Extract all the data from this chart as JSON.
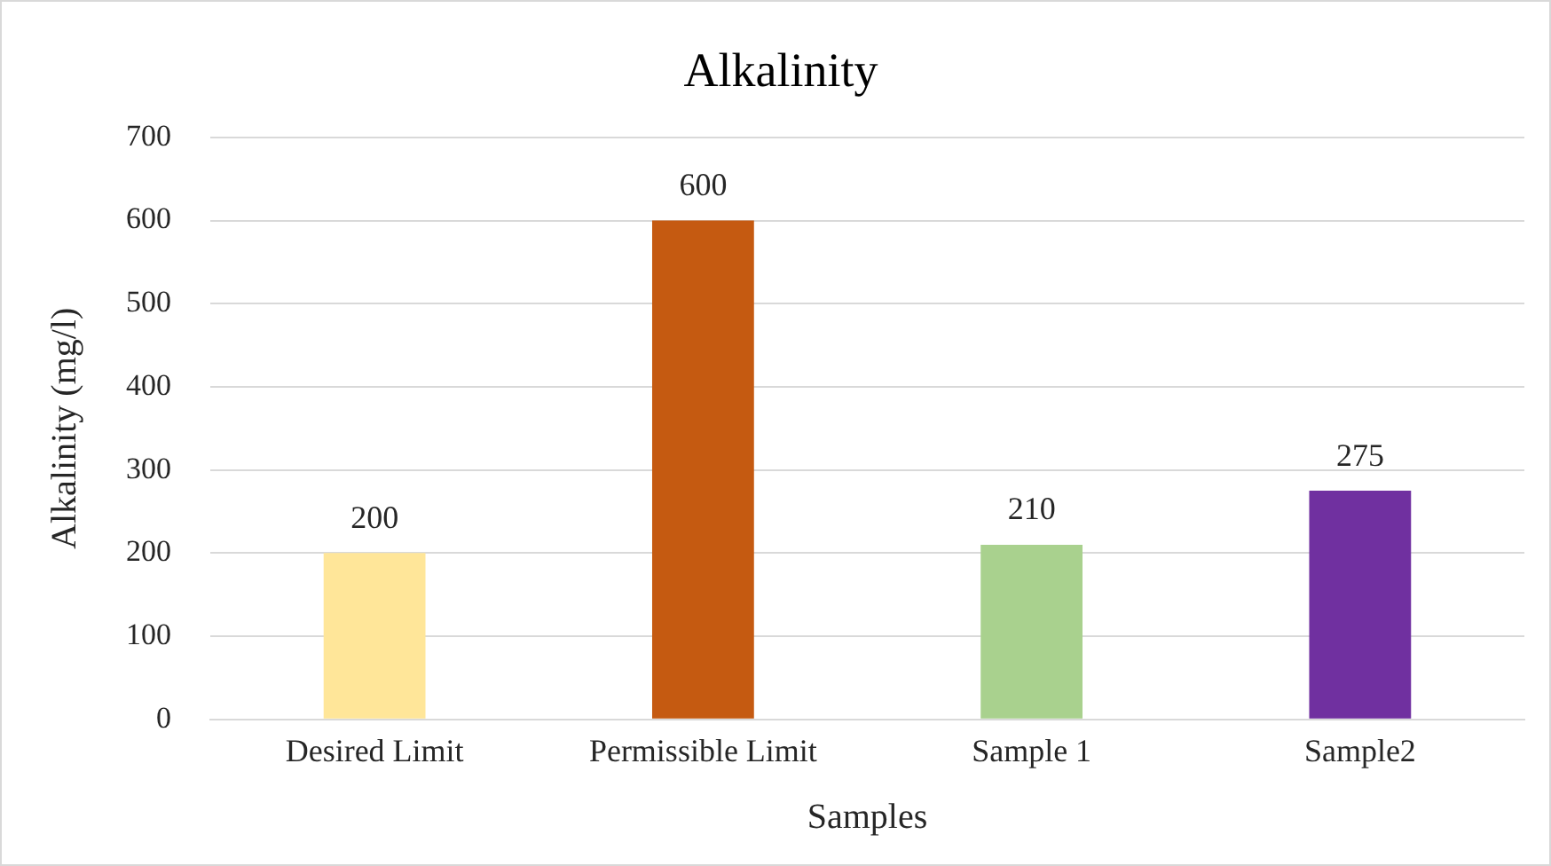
{
  "chart_data": {
    "type": "bar",
    "title": "Alkalinity",
    "xlabel": "Samples",
    "ylabel": "Alkalinity (mg/l)",
    "categories": [
      "Desired Limit",
      "Permissible Limit",
      "Sample 1",
      "Sample2"
    ],
    "values": [
      200,
      600,
      210,
      275
    ],
    "colors": [
      "#ffe699",
      "#c55a11",
      "#a9d18e",
      "#7030a0"
    ],
    "ylim": [
      0,
      700
    ],
    "yticks": [
      0,
      100,
      200,
      300,
      400,
      500,
      600,
      700
    ],
    "grid": "y",
    "legend": false,
    "data_labels": true
  }
}
